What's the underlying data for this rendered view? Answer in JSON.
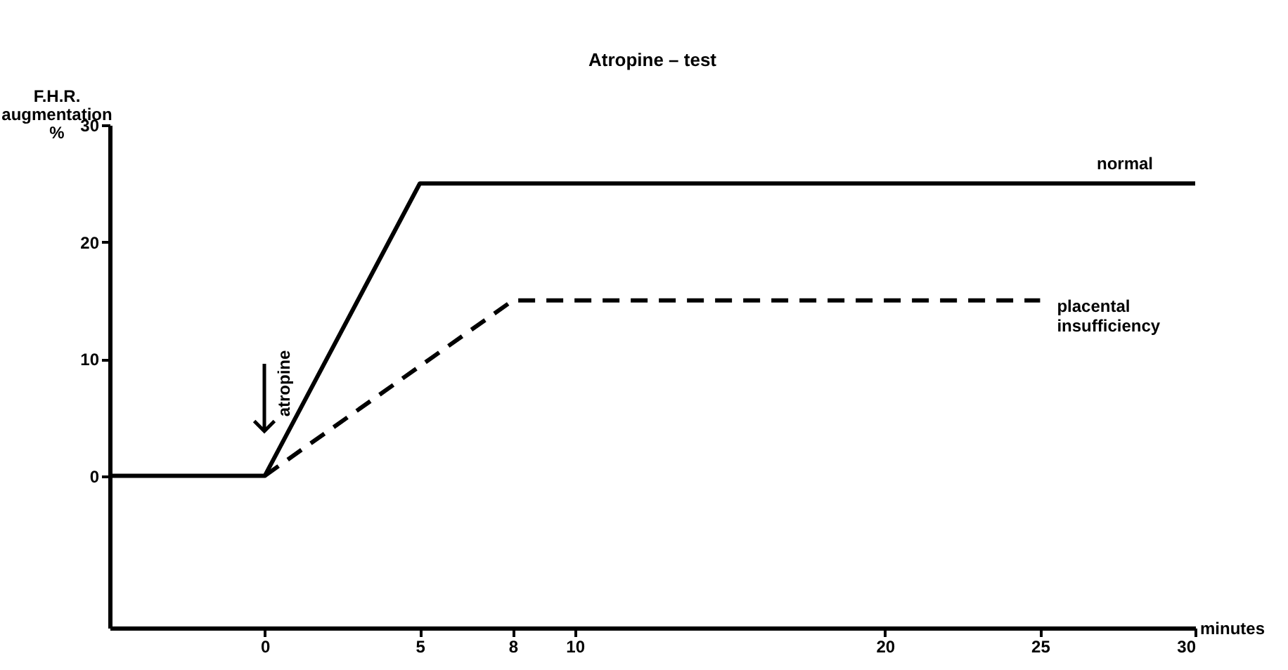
{
  "chart_data": {
    "type": "line",
    "title": "Atropine – test",
    "xlabel": "minutes",
    "ylabel": "F.H.R. augmentation %",
    "series": [
      {
        "name": "normal",
        "color": "#000000",
        "line_style": "solid",
        "x": [
          -5,
          0,
          5,
          30
        ],
        "values": [
          0,
          0,
          25,
          25
        ]
      },
      {
        "name": "placental insufficiency",
        "color": "#000000",
        "line_style": "dashed",
        "x": [
          0,
          8,
          25
        ],
        "values": [
          0,
          15,
          15
        ]
      }
    ],
    "xlim": [
      -5,
      30
    ],
    "xticks": [
      0,
      5,
      8,
      10,
      20,
      25,
      30
    ],
    "ylim": [
      -13,
      30
    ],
    "yticks": [
      0,
      10,
      20,
      30
    ],
    "annotations": [
      "atropine"
    ],
    "grid": false,
    "marker": "none"
  }
}
